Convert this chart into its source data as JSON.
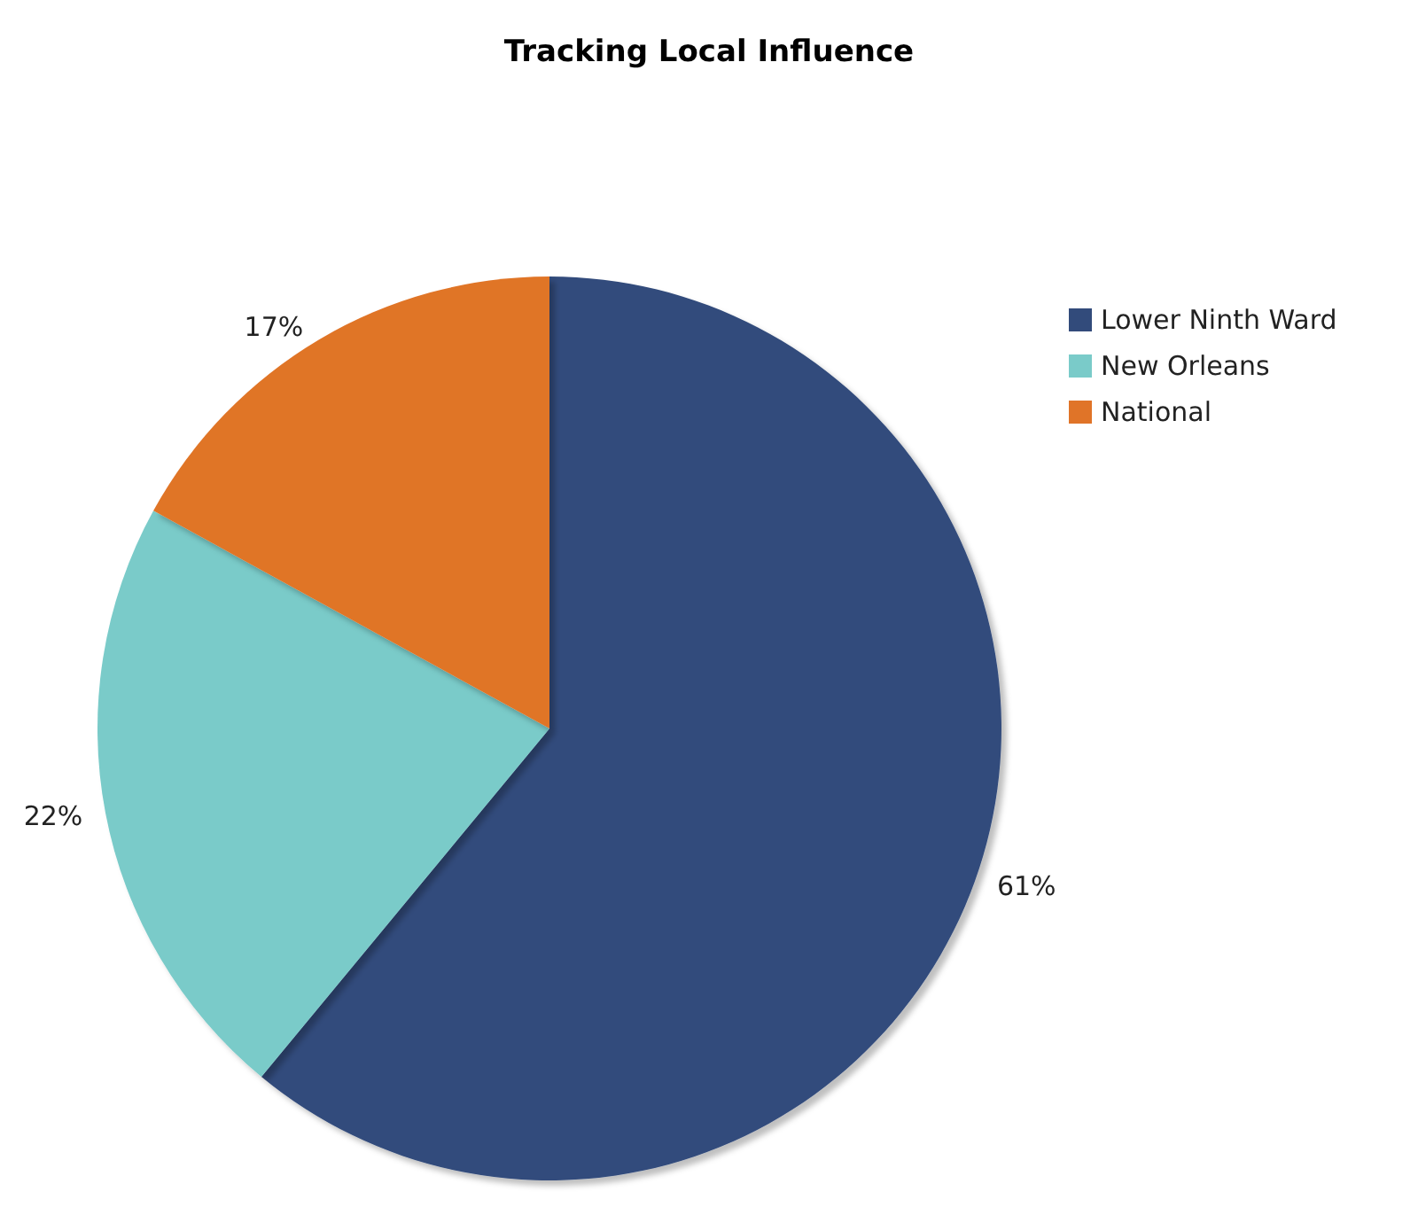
{
  "chart_data": {
    "type": "pie",
    "title": "Tracking Local Influence",
    "categories": [
      "Lower Ninth Ward",
      "New Orleans",
      "National"
    ],
    "values": [
      61,
      22,
      17
    ],
    "colors": [
      "#324b7b",
      "#7acbc9",
      "#e07428"
    ],
    "value_labels": [
      "61%",
      "22%",
      "17%"
    ],
    "legend": "top right"
  }
}
